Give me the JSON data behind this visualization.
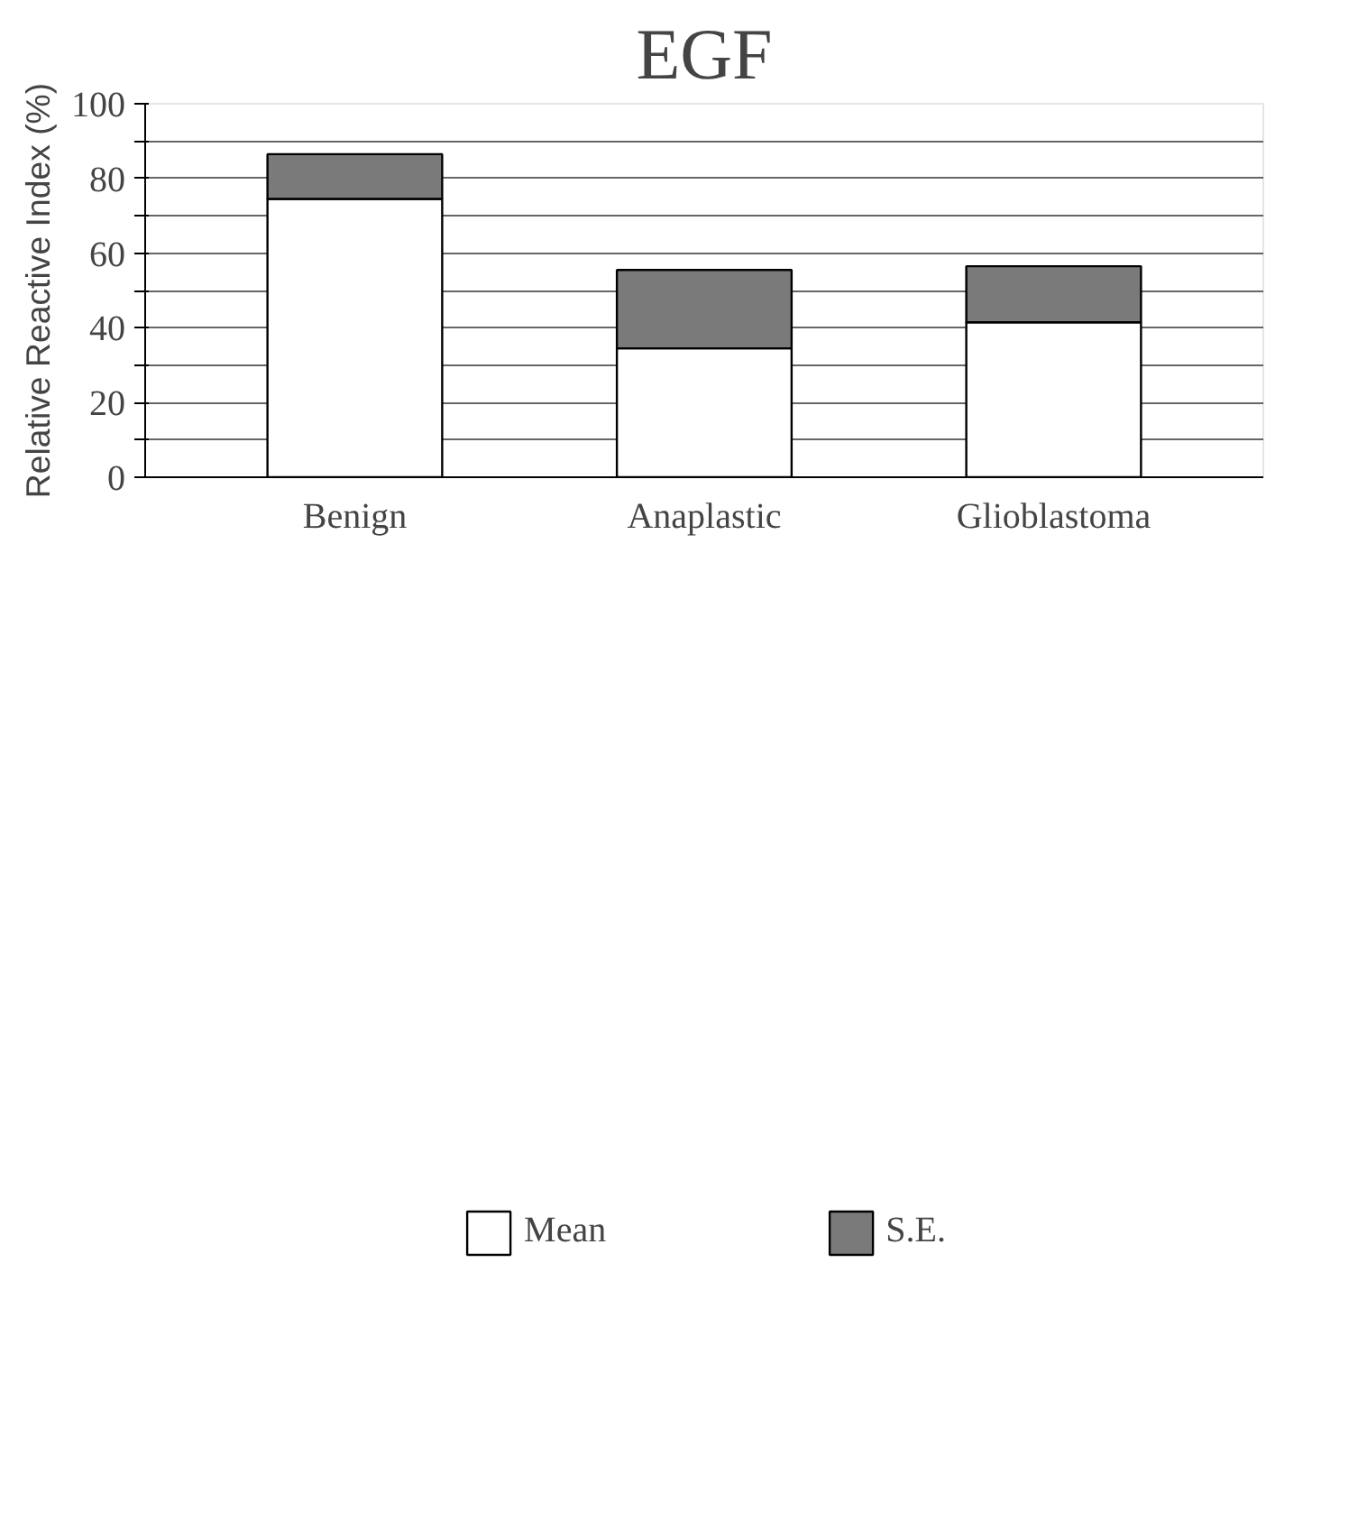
{
  "chart_data": {
    "type": "bar",
    "title": "EGF",
    "ylabel": "Relative Reactive Index (%)",
    "categories": [
      "Benign",
      "Anaplastic",
      "Glioblastoma"
    ],
    "series": [
      {
        "name": "Mean",
        "color": "#ffffff",
        "values": [
          74.5,
          34.5,
          41.5
        ]
      },
      {
        "name": "S.E.",
        "color": "#7a7a7a",
        "values": [
          12,
          21,
          15
        ]
      }
    ],
    "stacked": true,
    "ylim": [
      0,
      100
    ],
    "yticks": [
      0,
      {
        "value": 10,
        "label": null
      },
      20,
      {
        "value": 30,
        "label": null
      },
      40,
      {
        "value": 50,
        "label": null
      },
      60,
      {
        "value": 70,
        "label": null
      },
      80,
      {
        "value": 90,
        "label": null
      },
      100
    ],
    "grid": "y",
    "legend": "bottom"
  }
}
